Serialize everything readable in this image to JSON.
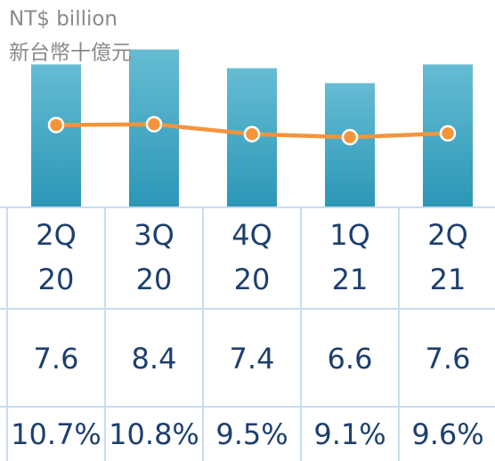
{
  "chart_data": {
    "type": "bar-line",
    "title": "NT$ billion",
    "subtitle": "新台幣十億元",
    "categories": [
      "2Q\n20",
      "3Q\n20",
      "4Q\n20",
      "1Q\n21",
      "2Q\n21"
    ],
    "ylim": [
      0,
      11
    ],
    "y2lim": [
      0,
      27
    ],
    "series": [
      {
        "type": "bar",
        "color": "#3ea5c2",
        "values": [
          7.6,
          8.4,
          7.4,
          6.6,
          7.6
        ]
      },
      {
        "type": "line",
        "axis": "y2",
        "color": "#f4943a",
        "values": [
          10.7,
          10.8,
          9.5,
          9.1,
          9.6
        ],
        "value_labels": [
          "10.7%",
          "10.8%",
          "9.5%",
          "9.1%",
          "9.6%"
        ]
      }
    ]
  }
}
